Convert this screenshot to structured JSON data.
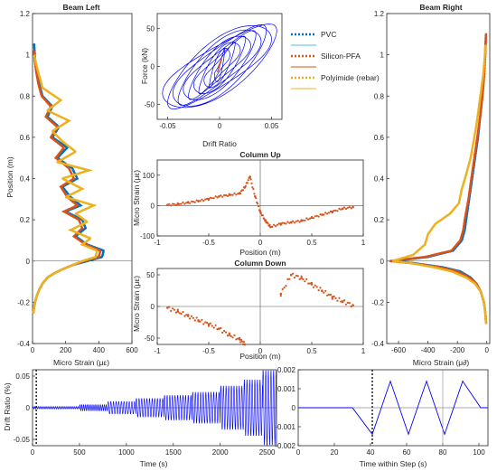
{
  "colors": {
    "pvc": "#0072BD",
    "pvc_fit": "#4DBEEE",
    "silicon": "#D95319",
    "polyimide": "#EDB120",
    "hysteresis": "#0000FF",
    "drift": "#0000FF",
    "axis": "#262626"
  },
  "legend": {
    "entries": [
      {
        "label": "PVC",
        "style": "dotted",
        "color": "#0072BD"
      },
      {
        "label": "",
        "style": "solid",
        "color": "#4DBEEE"
      },
      {
        "label": "Silicon-PFA",
        "style": "dotted",
        "color": "#D95319"
      },
      {
        "label": "",
        "style": "solid",
        "color": "#D95319"
      },
      {
        "label": "Polyimide (rebar)",
        "style": "dotted",
        "color": "#EDB120"
      },
      {
        "label": "",
        "style": "solid",
        "color": "#EDB120"
      }
    ]
  },
  "chart_data": [
    {
      "id": "beam-left",
      "type": "line",
      "title": "Beam Left",
      "xlabel": "Micro Strain (με)",
      "ylabel": "Position (m)",
      "xlim": [
        0,
        600
      ],
      "ylim": [
        -0.4,
        1.2
      ],
      "xticks": [
        0,
        200,
        400,
        600
      ],
      "yticks": [
        -0.4,
        -0.2,
        0,
        0.2,
        0.4,
        0.6,
        0.8,
        1,
        1.2
      ],
      "xtick_labels": [
        "0",
        "200",
        "400",
        "600"
      ],
      "ytick_labels": [
        "-0.4",
        "-0.2",
        "0",
        "0.2",
        "0.4",
        "0.6",
        "0.8",
        "1",
        "1.2"
      ],
      "grid": false,
      "series": [
        {
          "key": "pvc",
          "style": "dotted",
          "x": [
            5,
            10,
            15,
            25,
            40,
            60,
            90,
            130,
            180,
            240,
            330,
            420,
            430,
            330,
            260,
            320,
            300,
            200,
            290,
            230,
            180,
            270,
            240,
            150,
            210,
            120,
            160,
            90,
            120,
            60,
            40,
            25,
            15,
            10
          ],
          "y": [
            -0.25,
            -0.22,
            -0.2,
            -0.17,
            -0.14,
            -0.11,
            -0.08,
            -0.06,
            -0.04,
            -0.02,
            0,
            0.02,
            0.05,
            0.08,
            0.12,
            0.16,
            0.2,
            0.24,
            0.27,
            0.31,
            0.36,
            0.4,
            0.45,
            0.5,
            0.55,
            0.6,
            0.65,
            0.7,
            0.75,
            0.8,
            0.86,
            0.92,
            0.98,
            1.05
          ]
        },
        {
          "key": "silicon",
          "style": "dotted",
          "x": [
            5,
            10,
            15,
            25,
            40,
            60,
            90,
            130,
            180,
            240,
            310,
            400,
            410,
            320,
            250,
            300,
            280,
            190,
            270,
            210,
            170,
            250,
            220,
            140,
            190,
            110,
            150,
            80,
            110,
            55,
            35,
            22,
            12,
            8
          ],
          "y": [
            -0.25,
            -0.22,
            -0.2,
            -0.17,
            -0.14,
            -0.11,
            -0.08,
            -0.06,
            -0.04,
            -0.02,
            0,
            0.02,
            0.05,
            0.08,
            0.12,
            0.16,
            0.2,
            0.24,
            0.27,
            0.31,
            0.36,
            0.4,
            0.45,
            0.5,
            0.55,
            0.6,
            0.65,
            0.7,
            0.75,
            0.8,
            0.86,
            0.92,
            0.98,
            1.02
          ]
        },
        {
          "key": "polyimide",
          "style": "dotted",
          "x": [
            5,
            10,
            15,
            25,
            40,
            60,
            90,
            130,
            180,
            240,
            300,
            380,
            390,
            300,
            350,
            230,
            330,
            260,
            370,
            200,
            300,
            180,
            340,
            150,
            260,
            180,
            120,
            220,
            90,
            170,
            60,
            40,
            20,
            10
          ],
          "y": [
            -0.25,
            -0.22,
            -0.2,
            -0.17,
            -0.14,
            -0.11,
            -0.08,
            -0.06,
            -0.04,
            -0.02,
            0,
            0.02,
            0.05,
            0.08,
            0.11,
            0.15,
            0.19,
            0.23,
            0.27,
            0.31,
            0.35,
            0.4,
            0.44,
            0.48,
            0.53,
            0.58,
            0.63,
            0.68,
            0.73,
            0.78,
            0.84,
            0.9,
            0.96,
            1.0
          ]
        }
      ]
    },
    {
      "id": "hysteresis",
      "type": "line",
      "title": "",
      "xlabel": "Drift Ratio",
      "ylabel": "Force (kN)",
      "xlim": [
        -0.06,
        0.06
      ],
      "ylim": [
        -70,
        70
      ],
      "xticks": [
        -0.05,
        0,
        0.05
      ],
      "yticks": [
        -50,
        0,
        50
      ],
      "xtick_labels": [
        "-0.05",
        "0",
        "0.05"
      ],
      "ytick_labels": [
        "-50",
        "0",
        "50"
      ],
      "grid": false,
      "loop_amplitudes": [
        0.005,
        0.01,
        0.015,
        0.02,
        0.025,
        0.03,
        0.035,
        0.04,
        0.045,
        0.05,
        0.055
      ]
    },
    {
      "id": "column-up",
      "type": "scatter",
      "title": "Column Up",
      "xlabel": "Position (m)",
      "ylabel": "Micro Strain (με)",
      "xlim": [
        -1,
        1
      ],
      "ylim": [
        -100,
        150
      ],
      "xticks": [
        -1,
        -0.5,
        0,
        0.5,
        1
      ],
      "yticks": [
        -100,
        0,
        100
      ],
      "xtick_labels": [
        "-1",
        "-0.5",
        "0",
        "0.5",
        "1"
      ],
      "ytick_labels": [
        "-100",
        "0",
        "100"
      ],
      "grid": false,
      "series": [
        {
          "key": "silicon",
          "x": [
            -0.9,
            -0.8,
            -0.7,
            -0.6,
            -0.5,
            -0.4,
            -0.3,
            -0.2,
            -0.15,
            -0.1,
            -0.05,
            0,
            0.05,
            0.1,
            0.2,
            0.3,
            0.4,
            0.5,
            0.6,
            0.7,
            0.8,
            0.9
          ],
          "y": [
            2,
            5,
            10,
            15,
            22,
            30,
            35,
            40,
            60,
            95,
            30,
            -20,
            -50,
            -70,
            -60,
            -55,
            -50,
            -40,
            -30,
            -20,
            -10,
            -5
          ]
        }
      ]
    },
    {
      "id": "column-down",
      "type": "scatter",
      "title": "Column Down",
      "xlabel": "Position (m)",
      "ylabel": "Micro Strain (με)",
      "xlim": [
        -1,
        1
      ],
      "ylim": [
        -60,
        60
      ],
      "xticks": [
        -1,
        -0.5,
        0,
        0.5,
        1
      ],
      "yticks": [
        -50,
        0,
        50
      ],
      "xtick_labels": [
        "-1",
        "-0.5",
        "0",
        "0.5",
        "1"
      ],
      "ytick_labels": [
        "-50",
        "0",
        "50"
      ],
      "grid": false,
      "series": [
        {
          "key": "silicon",
          "x": [
            -0.9,
            -0.8,
            -0.7,
            -0.6,
            -0.5,
            -0.4,
            -0.3,
            -0.2,
            -0.15,
            0.2,
            0.3,
            0.4,
            0.5,
            0.6,
            0.7,
            0.8,
            0.9
          ],
          "y": [
            -2,
            -8,
            -15,
            -22,
            -28,
            -35,
            -45,
            -52,
            -60,
            20,
            50,
            45,
            35,
            25,
            15,
            8,
            2
          ]
        }
      ]
    },
    {
      "id": "beam-right",
      "type": "line",
      "title": "Beam Right",
      "xlabel": "Micro Strain (μ∂)",
      "ylabel": "",
      "xlim": [
        -680,
        20
      ],
      "ylim": [
        -0.4,
        1.2
      ],
      "xticks": [
        -600,
        -400,
        -200,
        0
      ],
      "yticks": [
        -0.4,
        -0.2,
        0,
        0.2,
        0.4,
        0.6,
        0.8,
        1,
        1.2
      ],
      "xtick_labels": [
        "-600",
        "-400",
        "-200",
        "0"
      ],
      "ytick_labels": [
        "-0.4",
        "-0.2",
        "0",
        "0.2",
        "0.4",
        "0.6",
        "0.8",
        "1",
        "1.2"
      ],
      "grid": false,
      "series": [
        {
          "key": "pvc",
          "style": "dotted",
          "x": [
            -5,
            -10,
            -20,
            -40,
            -70,
            -110,
            -180,
            -300,
            -500,
            -640,
            -400,
            -230,
            -170,
            -150,
            -140,
            -120,
            -100,
            -80,
            -60,
            -45,
            -30,
            -20,
            -12,
            -6
          ],
          "y": [
            -0.3,
            -0.25,
            -0.2,
            -0.15,
            -0.11,
            -0.08,
            -0.05,
            -0.03,
            -0.01,
            0,
            0.02,
            0.05,
            0.1,
            0.15,
            0.2,
            0.3,
            0.4,
            0.5,
            0.6,
            0.7,
            0.8,
            0.9,
            1.0,
            1.1
          ]
        },
        {
          "key": "silicon",
          "style": "dotted",
          "x": [
            -5,
            -10,
            -20,
            -40,
            -70,
            -120,
            -200,
            -320,
            -520,
            -660,
            -420,
            -240,
            -180,
            -160,
            -150,
            -125,
            -105,
            -85,
            -65,
            -45,
            -30,
            -18,
            -10,
            -5
          ],
          "y": [
            -0.3,
            -0.25,
            -0.2,
            -0.15,
            -0.11,
            -0.08,
            -0.05,
            -0.03,
            -0.01,
            0,
            0.02,
            0.05,
            0.1,
            0.15,
            0.2,
            0.3,
            0.4,
            0.5,
            0.6,
            0.7,
            0.8,
            0.9,
            1.0,
            1.1
          ]
        },
        {
          "key": "polyimide",
          "style": "dotted",
          "x": [
            -5,
            -10,
            -20,
            -40,
            -80,
            -140,
            -240,
            -360,
            -520,
            -640,
            -500,
            -420,
            -400,
            -350,
            -250,
            -190,
            -170,
            -140,
            -110,
            -90,
            -70,
            -55,
            -40,
            -25,
            -15,
            -8
          ],
          "y": [
            -0.3,
            -0.25,
            -0.2,
            -0.15,
            -0.11,
            -0.08,
            -0.05,
            -0.03,
            -0.01,
            0,
            0.03,
            0.08,
            0.13,
            0.18,
            0.23,
            0.28,
            0.35,
            0.42,
            0.5,
            0.58,
            0.66,
            0.74,
            0.82,
            0.9,
            0.98,
            1.05
          ]
        }
      ]
    },
    {
      "id": "drift-history",
      "type": "line",
      "title": "",
      "xlabel": "Time (s)",
      "ylabel": "Drift Ratio (%)",
      "xlim": [
        0,
        2600
      ],
      "ylim": [
        -0.06,
        0.06
      ],
      "xticks": [
        0,
        500,
        1000,
        1500,
        2000,
        2500
      ],
      "yticks": [
        -0.05,
        0,
        0.05
      ],
      "xtick_labels": [
        "0",
        "500",
        "1000",
        "1500",
        "2000",
        "2500"
      ],
      "ytick_labels": [
        "-0.05",
        "0",
        "0.05"
      ],
      "grid": false,
      "marker_x": [
        40
      ],
      "amplitude_steps": [
        {
          "t0": 0,
          "t1": 500,
          "amp": 0.002
        },
        {
          "t0": 500,
          "t1": 800,
          "amp": 0.005
        },
        {
          "t0": 800,
          "t1": 1100,
          "amp": 0.01
        },
        {
          "t0": 1100,
          "t1": 1400,
          "amp": 0.015
        },
        {
          "t0": 1400,
          "t1": 1700,
          "amp": 0.02
        },
        {
          "t0": 1700,
          "t1": 2000,
          "amp": 0.025
        },
        {
          "t0": 2000,
          "t1": 2250,
          "amp": 0.035
        },
        {
          "t0": 2250,
          "t1": 2450,
          "amp": 0.045
        },
        {
          "t0": 2450,
          "t1": 2600,
          "amp": 0.06
        }
      ]
    },
    {
      "id": "step-detail",
      "type": "line",
      "title": "",
      "xlabel": "Time within Step (s)",
      "ylabel": "",
      "xlim": [
        0,
        105
      ],
      "ylim": [
        -0.002,
        0.002
      ],
      "xticks": [
        0,
        20,
        40,
        60,
        80,
        100
      ],
      "yticks": [
        -0.002,
        -0.001,
        0,
        0.001,
        0.002
      ],
      "xtick_labels": [
        "0",
        "20",
        "40",
        "60",
        "80",
        "100"
      ],
      "ytick_labels": [
        "-0.002",
        "-0.001",
        "0",
        "0.001",
        "0.002"
      ],
      "grid": false,
      "marker_x": [
        41
      ],
      "ref_x": [
        80
      ],
      "x": [
        0,
        30,
        41,
        51,
        61,
        71,
        81,
        91,
        101,
        105
      ],
      "y": [
        0,
        0,
        -0.0014,
        0.0014,
        -0.0014,
        0.0014,
        -0.0014,
        0.0014,
        0,
        0
      ]
    }
  ]
}
